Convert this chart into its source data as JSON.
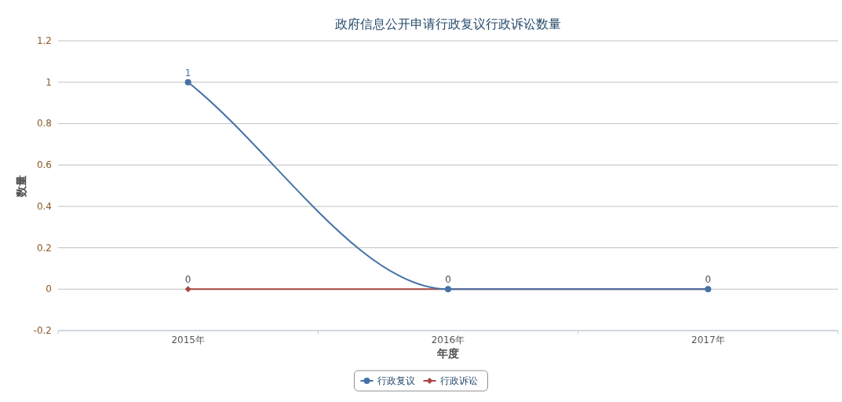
{
  "chart_data": {
    "type": "line",
    "title": "政府信息公开申请行政复议行政诉讼数量",
    "xlabel": "年度",
    "ylabel": "数量",
    "categories": [
      "2015年",
      "2016年",
      "2017年"
    ],
    "series": [
      {
        "name": "行政复议",
        "color": "#4572a7",
        "marker": "circle",
        "values": [
          1,
          0,
          0
        ],
        "value_labels": [
          "1",
          "0",
          "0"
        ]
      },
      {
        "name": "行政诉讼",
        "color": "#aa4643",
        "marker": "diamond",
        "values": [
          0,
          0,
          0
        ],
        "value_labels": [
          "0",
          null,
          null
        ]
      }
    ],
    "ylim": [
      -0.2,
      1.2
    ],
    "yticks": [
      -0.2,
      0,
      0.2,
      0.4,
      0.6,
      0.8,
      1,
      1.2
    ],
    "grid": "y",
    "legend": "bottom",
    "line_style": "solid"
  }
}
